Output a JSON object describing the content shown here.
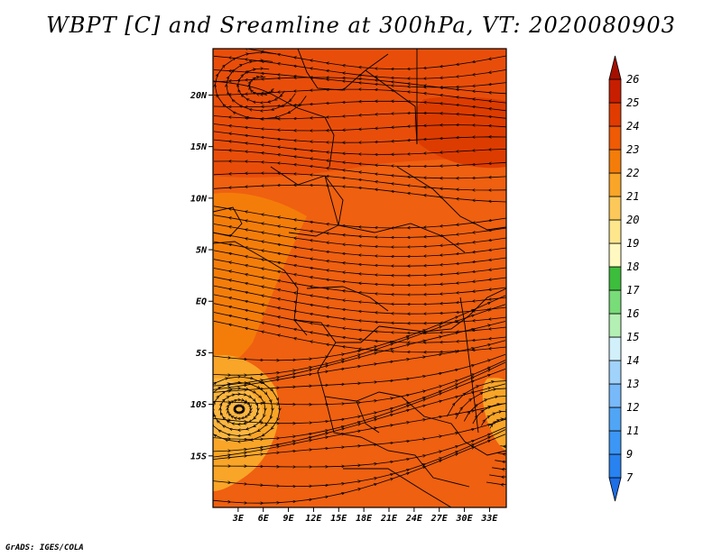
{
  "title": "WBPT [C] and Sreamline at 300hPa, VT: 2020080903",
  "credit": "GrADS: IGES/COLA",
  "map": {
    "lon_range": [
      0,
      35
    ],
    "lat_range": [
      -20,
      24.5
    ],
    "lat_ticks": [
      {
        "value": 20,
        "label": "20N"
      },
      {
        "value": 15,
        "label": "15N"
      },
      {
        "value": 10,
        "label": "10N"
      },
      {
        "value": 5,
        "label": "5N"
      },
      {
        "value": 0,
        "label": "EQ"
      },
      {
        "value": -5,
        "label": "5S"
      },
      {
        "value": -10,
        "label": "10S"
      },
      {
        "value": -15,
        "label": "15S"
      }
    ],
    "lon_ticks": [
      {
        "value": 3,
        "label": "3E"
      },
      {
        "value": 6,
        "label": "6E"
      },
      {
        "value": 9,
        "label": "9E"
      },
      {
        "value": 12,
        "label": "12E"
      },
      {
        "value": 15,
        "label": "15E"
      },
      {
        "value": 18,
        "label": "18E"
      },
      {
        "value": 21,
        "label": "21E"
      },
      {
        "value": 24,
        "label": "24E"
      },
      {
        "value": 27,
        "label": "27E"
      },
      {
        "value": 30,
        "label": "30E"
      },
      {
        "value": 33,
        "label": "33E"
      }
    ]
  },
  "colorbar": {
    "levels": [
      "7",
      "9",
      "11",
      "12",
      "13",
      "14",
      "15",
      "16",
      "17",
      "18",
      "19",
      "20",
      "21",
      "22",
      "23",
      "24",
      "25",
      "26"
    ],
    "colors": [
      "#1e6ee6",
      "#2882f0",
      "#3c96f5",
      "#50a5f5",
      "#78b9fa",
      "#a0d2fa",
      "#d2f0fa",
      "#b4f0b4",
      "#78dc78",
      "#3cbe3c",
      "#fff8c0",
      "#fde68c",
      "#fcc85a",
      "#f9a528",
      "#f47d0a",
      "#ef5a05",
      "#e13c00",
      "#c81e00",
      "#a50f00"
    ]
  },
  "field": {
    "background": "#ef6010",
    "regions": [
      {
        "name": "north-red-band",
        "color": "#e84e0a"
      },
      {
        "name": "northeast-dark-red",
        "color": "#dd3c00"
      },
      {
        "name": "west-orange",
        "color": "#f47d0a"
      },
      {
        "name": "southwest-light-orange",
        "color": "#f9a528"
      },
      {
        "name": "southwest-core",
        "color": "#fcb640"
      },
      {
        "name": "southeast-orange",
        "color": "#f9a528"
      }
    ]
  }
}
